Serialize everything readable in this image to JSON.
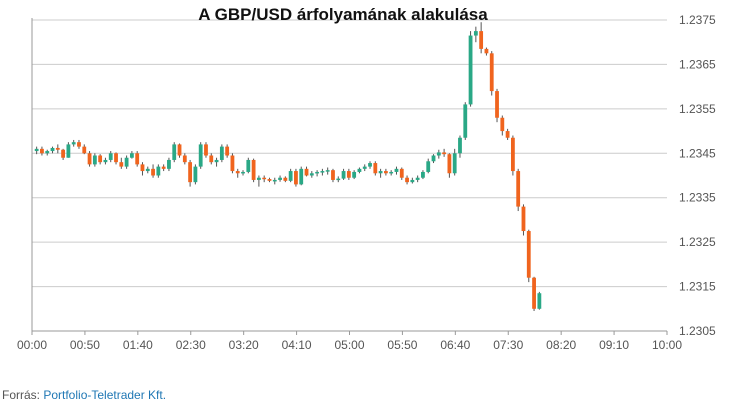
{
  "chart_data": {
    "type": "candlestick",
    "title": "A GBP/USD árfolyamának alakulása",
    "xlabel": "",
    "ylabel": "",
    "x_tick_labels": [
      "00:00",
      "00:50",
      "01:40",
      "02:30",
      "03:20",
      "04:10",
      "05:00",
      "05:50",
      "06:40",
      "07:30",
      "08:20",
      "09:10",
      "10:00"
    ],
    "y_ticks": [
      1.2375,
      1.2365,
      1.2355,
      1.2345,
      1.2335,
      1.2325,
      1.2315,
      1.2305
    ],
    "ylim": [
      1.2305,
      1.2375
    ],
    "xlim_minutes": [
      0,
      600
    ],
    "interval_minutes": 5,
    "grid": "horizontal",
    "colors": {
      "up": "#2aa886",
      "down": "#f0641e",
      "grid": "#cccccc",
      "axis": "#999999"
    },
    "candles": [
      [
        1.23455,
        1.23465,
        1.23448,
        1.2346
      ],
      [
        1.2346,
        1.23465,
        1.23445,
        1.2345
      ],
      [
        1.2345,
        1.23458,
        1.23445,
        1.23455
      ],
      [
        1.23455,
        1.23465,
        1.2345,
        1.23462
      ],
      [
        1.23462,
        1.2347,
        1.2345,
        1.23458
      ],
      [
        1.23458,
        1.2346,
        1.23435,
        1.2344
      ],
      [
        1.2344,
        1.23475,
        1.2344,
        1.2347
      ],
      [
        1.2347,
        1.2348,
        1.23465,
        1.23475
      ],
      [
        1.23475,
        1.2348,
        1.2346,
        1.23465
      ],
      [
        1.23465,
        1.2347,
        1.23448,
        1.2345
      ],
      [
        1.2345,
        1.23455,
        1.2342,
        1.23425
      ],
      [
        1.23425,
        1.2345,
        1.2342,
        1.23445
      ],
      [
        1.23445,
        1.23448,
        1.23425,
        1.2343
      ],
      [
        1.2343,
        1.2344,
        1.23425,
        1.23435
      ],
      [
        1.23435,
        1.23455,
        1.2343,
        1.2345
      ],
      [
        1.2345,
        1.23452,
        1.23425,
        1.2343
      ],
      [
        1.2343,
        1.2344,
        1.23415,
        1.2342
      ],
      [
        1.2342,
        1.23445,
        1.23415,
        1.2344
      ],
      [
        1.2344,
        1.23455,
        1.23438,
        1.2345
      ],
      [
        1.2345,
        1.23455,
        1.2342,
        1.23425
      ],
      [
        1.23425,
        1.2343,
        1.234,
        1.2341
      ],
      [
        1.2341,
        1.2342,
        1.23405,
        1.23415
      ],
      [
        1.23415,
        1.23425,
        1.23395,
        1.234
      ],
      [
        1.234,
        1.23425,
        1.23395,
        1.2342
      ],
      [
        1.2342,
        1.23425,
        1.2341,
        1.23415
      ],
      [
        1.23415,
        1.2344,
        1.2341,
        1.23435
      ],
      [
        1.23435,
        1.23475,
        1.2343,
        1.2347
      ],
      [
        1.2347,
        1.23472,
        1.2344,
        1.23445
      ],
      [
        1.23445,
        1.2345,
        1.23425,
        1.2343
      ],
      [
        1.2343,
        1.23435,
        1.23375,
        1.23385
      ],
      [
        1.23385,
        1.23425,
        1.2338,
        1.2342
      ],
      [
        1.2342,
        1.23475,
        1.23415,
        1.2347
      ],
      [
        1.2347,
        1.23475,
        1.2344,
        1.23445
      ],
      [
        1.23445,
        1.2345,
        1.23425,
        1.2343
      ],
      [
        1.2343,
        1.2344,
        1.2342,
        1.23435
      ],
      [
        1.23435,
        1.2347,
        1.2343,
        1.23465
      ],
      [
        1.23465,
        1.2347,
        1.2344,
        1.23445
      ],
      [
        1.23445,
        1.2345,
        1.23405,
        1.2341
      ],
      [
        1.2341,
        1.23415,
        1.23395,
        1.23405
      ],
      [
        1.23405,
        1.23412,
        1.234,
        1.23408
      ],
      [
        1.23408,
        1.2344,
        1.23405,
        1.23435
      ],
      [
        1.23435,
        1.23438,
        1.23385,
        1.2339
      ],
      [
        1.2339,
        1.234,
        1.23375,
        1.23395
      ],
      [
        1.23395,
        1.234,
        1.23385,
        1.23392
      ],
      [
        1.23392,
        1.23395,
        1.23385,
        1.23388
      ],
      [
        1.23388,
        1.23395,
        1.2338,
        1.2339
      ],
      [
        1.2339,
        1.234,
        1.23386,
        1.23395
      ],
      [
        1.23395,
        1.23398,
        1.23385,
        1.23388
      ],
      [
        1.23388,
        1.23415,
        1.23385,
        1.2341
      ],
      [
        1.2341,
        1.23415,
        1.23375,
        1.2338
      ],
      [
        1.2338,
        1.2342,
        1.23378,
        1.23415
      ],
      [
        1.23415,
        1.2342,
        1.23398,
        1.234
      ],
      [
        1.234,
        1.2341,
        1.23395,
        1.23405
      ],
      [
        1.23405,
        1.23412,
        1.23398,
        1.23408
      ],
      [
        1.23408,
        1.23415,
        1.234,
        1.2341
      ],
      [
        1.2341,
        1.23418,
        1.23402,
        1.23412
      ],
      [
        1.23412,
        1.23415,
        1.23385,
        1.2339
      ],
      [
        1.2339,
        1.23398,
        1.23385,
        1.23393
      ],
      [
        1.23393,
        1.23415,
        1.2339,
        1.2341
      ],
      [
        1.2341,
        1.23415,
        1.2339,
        1.23395
      ],
      [
        1.23395,
        1.23412,
        1.23392,
        1.23408
      ],
      [
        1.23408,
        1.23418,
        1.23405,
        1.23415
      ],
      [
        1.23415,
        1.23425,
        1.2341,
        1.2342
      ],
      [
        1.2342,
        1.23432,
        1.23415,
        1.23428
      ],
      [
        1.23428,
        1.23432,
        1.234,
        1.23405
      ],
      [
        1.23405,
        1.23415,
        1.23395,
        1.2341
      ],
      [
        1.2341,
        1.23415,
        1.234,
        1.23405
      ],
      [
        1.23405,
        1.23412,
        1.234,
        1.23408
      ],
      [
        1.23408,
        1.2342,
        1.23402,
        1.23415
      ],
      [
        1.23415,
        1.23418,
        1.2339,
        1.23395
      ],
      [
        1.23395,
        1.234,
        1.2338,
        1.23385
      ],
      [
        1.23385,
        1.23395,
        1.23382,
        1.2339
      ],
      [
        1.2339,
        1.234,
        1.23385,
        1.23395
      ],
      [
        1.23395,
        1.23412,
        1.23392,
        1.23408
      ],
      [
        1.23408,
        1.23438,
        1.23405,
        1.23432
      ],
      [
        1.23432,
        1.23448,
        1.23428,
        1.23445
      ],
      [
        1.23445,
        1.23458,
        1.23438,
        1.23452
      ],
      [
        1.23452,
        1.2346,
        1.23442,
        1.23448
      ],
      [
        1.23448,
        1.2345,
        1.23395,
        1.23405
      ],
      [
        1.23405,
        1.2346,
        1.234,
        1.2345
      ],
      [
        1.2345,
        1.2349,
        1.2344,
        1.23485
      ],
      [
        1.23485,
        1.23565,
        1.2348,
        1.2356
      ],
      [
        1.2356,
        1.23725,
        1.23555,
        1.23715
      ],
      [
        1.23715,
        1.23735,
        1.237,
        1.23725
      ],
      [
        1.23725,
        1.23745,
        1.23675,
        1.23685
      ],
      [
        1.23685,
        1.23688,
        1.2367,
        1.23675
      ],
      [
        1.23675,
        1.2368,
        1.2358,
        1.2359
      ],
      [
        1.2359,
        1.23595,
        1.2352,
        1.2353
      ],
      [
        1.2353,
        1.23535,
        1.2349,
        1.235
      ],
      [
        1.235,
        1.23505,
        1.2348,
        1.23485
      ],
      [
        1.23485,
        1.2349,
        1.234,
        1.2341
      ],
      [
        1.2341,
        1.23415,
        1.2332,
        1.2333
      ],
      [
        1.2333,
        1.23335,
        1.23265,
        1.23275
      ],
      [
        1.23275,
        1.23278,
        1.2316,
        1.2317
      ],
      [
        1.2317,
        1.23172,
        1.23095,
        1.231
      ],
      [
        1.231,
        1.23138,
        1.23098,
        1.23135
      ]
    ]
  },
  "source": {
    "label": "Forrás: ",
    "link_text": "Portfolio-Teletrader Kft."
  }
}
